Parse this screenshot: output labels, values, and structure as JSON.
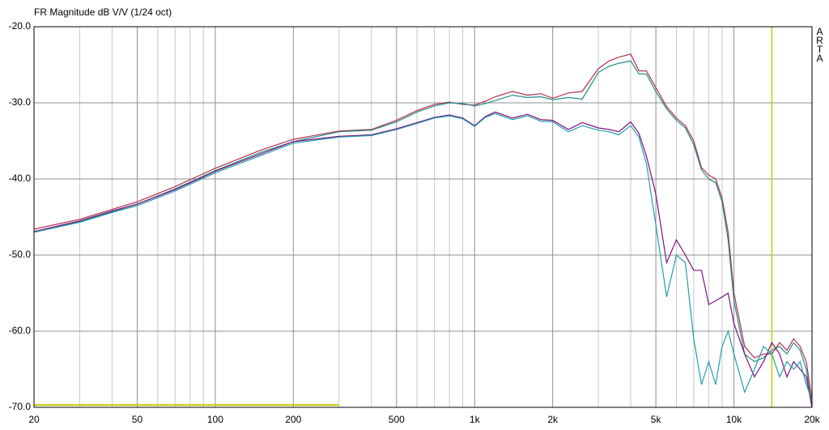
{
  "chart_data": {
    "type": "line",
    "title": "FR Magnitude dB V/V (1/24 oct)",
    "watermark": "ARTA",
    "log_x": true,
    "grid": true,
    "xlim": [
      20,
      20000
    ],
    "ylim": [
      -70,
      -20
    ],
    "xticks": [
      20,
      50,
      100,
      200,
      500,
      {
        "value": 1000,
        "label": "1k"
      },
      {
        "value": 2000,
        "label": "2k"
      },
      {
        "value": 5000,
        "label": "5k"
      },
      {
        "value": 10000,
        "label": "10k"
      },
      {
        "value": 20000,
        "label": "20k"
      }
    ],
    "x_minor_ticks": [
      30,
      40,
      60,
      70,
      80,
      90,
      300,
      400,
      600,
      700,
      800,
      900,
      3000,
      4000,
      6000,
      7000,
      8000,
      9000
    ],
    "yticks": [
      {
        "value": -20,
        "label": "-20.0"
      },
      {
        "value": -30,
        "label": "-30.0"
      },
      {
        "value": -40,
        "label": "-40.0"
      },
      {
        "value": -50,
        "label": "-50.0"
      },
      {
        "value": -60,
        "label": "-60.0"
      },
      {
        "value": -70,
        "label": "-70.0"
      }
    ],
    "cursor_x": 14000,
    "cursor_color": "#c8c800",
    "reference_line": {
      "y": -69.7,
      "x": [
        20,
        300
      ],
      "color": "#c8c800"
    },
    "x": [
      20,
      30,
      40,
      50,
      70,
      100,
      150,
      200,
      300,
      400,
      500,
      600,
      700,
      800,
      900,
      1000,
      1100,
      1200,
      1400,
      1600,
      1800,
      2000,
      2300,
      2600,
      3000,
      3300,
      3600,
      4000,
      4300,
      4600,
      5000,
      5500,
      6000,
      6500,
      7000,
      7500,
      8000,
      8500,
      9000,
      9500,
      10000,
      11000,
      12000,
      13000,
      14000,
      15000,
      16000,
      17000,
      18000,
      19000,
      20000
    ],
    "series": [
      {
        "color": "#b03048",
        "values": [
          -46.6,
          -45.3,
          -44,
          -43,
          -41,
          -38.6,
          -36.2,
          -34.8,
          -33.7,
          -33.5,
          -32.3,
          -31,
          -30.2,
          -29.9,
          -30.2,
          -30.3,
          -29.8,
          -29.2,
          -28.5,
          -29,
          -28.8,
          -29.4,
          -28.7,
          -28.5,
          -25.5,
          -24.5,
          -24,
          -23.6,
          -25.8,
          -25.8,
          -28,
          -30.5,
          -32,
          -33,
          -35,
          -38.5,
          -39.5,
          -40,
          -42.5,
          -47,
          -55,
          -62,
          -63.5,
          -63,
          -63,
          -61.5,
          -62.5,
          -61,
          -62,
          -64,
          -69
        ]
      },
      {
        "color": "#208c8c",
        "values": [
          -47,
          -45.6,
          -44.3,
          -43.3,
          -41.3,
          -38.9,
          -36.5,
          -35.1,
          -33.8,
          -33.6,
          -32.5,
          -31.2,
          -30.4,
          -30,
          -30.1,
          -30.4,
          -30.1,
          -29.7,
          -29,
          -29.3,
          -29.2,
          -29.6,
          -29.3,
          -29.5,
          -26,
          -25.2,
          -24.8,
          -24.5,
          -26.2,
          -26.2,
          -28.5,
          -30.8,
          -32.3,
          -33.3,
          -35.5,
          -38.8,
          -40,
          -40.5,
          -43,
          -48,
          -56,
          -63,
          -64,
          -63.5,
          -62.5,
          -62,
          -63,
          -61.5,
          -62.5,
          -65,
          -70
        ]
      },
      {
        "color": "#801080",
        "values": [
          -46.9,
          -45.5,
          -44.2,
          -43.3,
          -41.4,
          -39,
          -36.7,
          -35.1,
          -34.4,
          -34.2,
          -33.4,
          -32.6,
          -31.9,
          -31.6,
          -32,
          -33,
          -31.8,
          -31.2,
          -32,
          -31.5,
          -32.2,
          -32.3,
          -33.5,
          -32.6,
          -33.3,
          -33.5,
          -33.8,
          -32.5,
          -34,
          -37,
          -42,
          -51,
          -48,
          -50,
          -52,
          -52,
          -56.5,
          -56,
          -55.5,
          -55,
          -59,
          -63,
          -66,
          -64,
          -61.5,
          -63,
          -66,
          -64,
          -65,
          -66,
          -70
        ]
      },
      {
        "color": "#20a0a8",
        "values": [
          -47,
          -45.7,
          -44.4,
          -43.5,
          -41.6,
          -39.2,
          -36.9,
          -35.3,
          -34.5,
          -34.3,
          -33.5,
          -32.7,
          -32,
          -31.7,
          -32.1,
          -33.1,
          -31.9,
          -31.4,
          -32.2,
          -31.7,
          -32.4,
          -32.5,
          -33.8,
          -33,
          -33.6,
          -33.8,
          -34.2,
          -33,
          -34.5,
          -38,
          -46,
          -55.5,
          -50,
          -51,
          -61,
          -67,
          -64,
          -67,
          -62,
          -60,
          -63,
          -68,
          -65,
          -62,
          -63,
          -66,
          -64,
          -65,
          -64,
          -67,
          -69
        ]
      }
    ]
  }
}
